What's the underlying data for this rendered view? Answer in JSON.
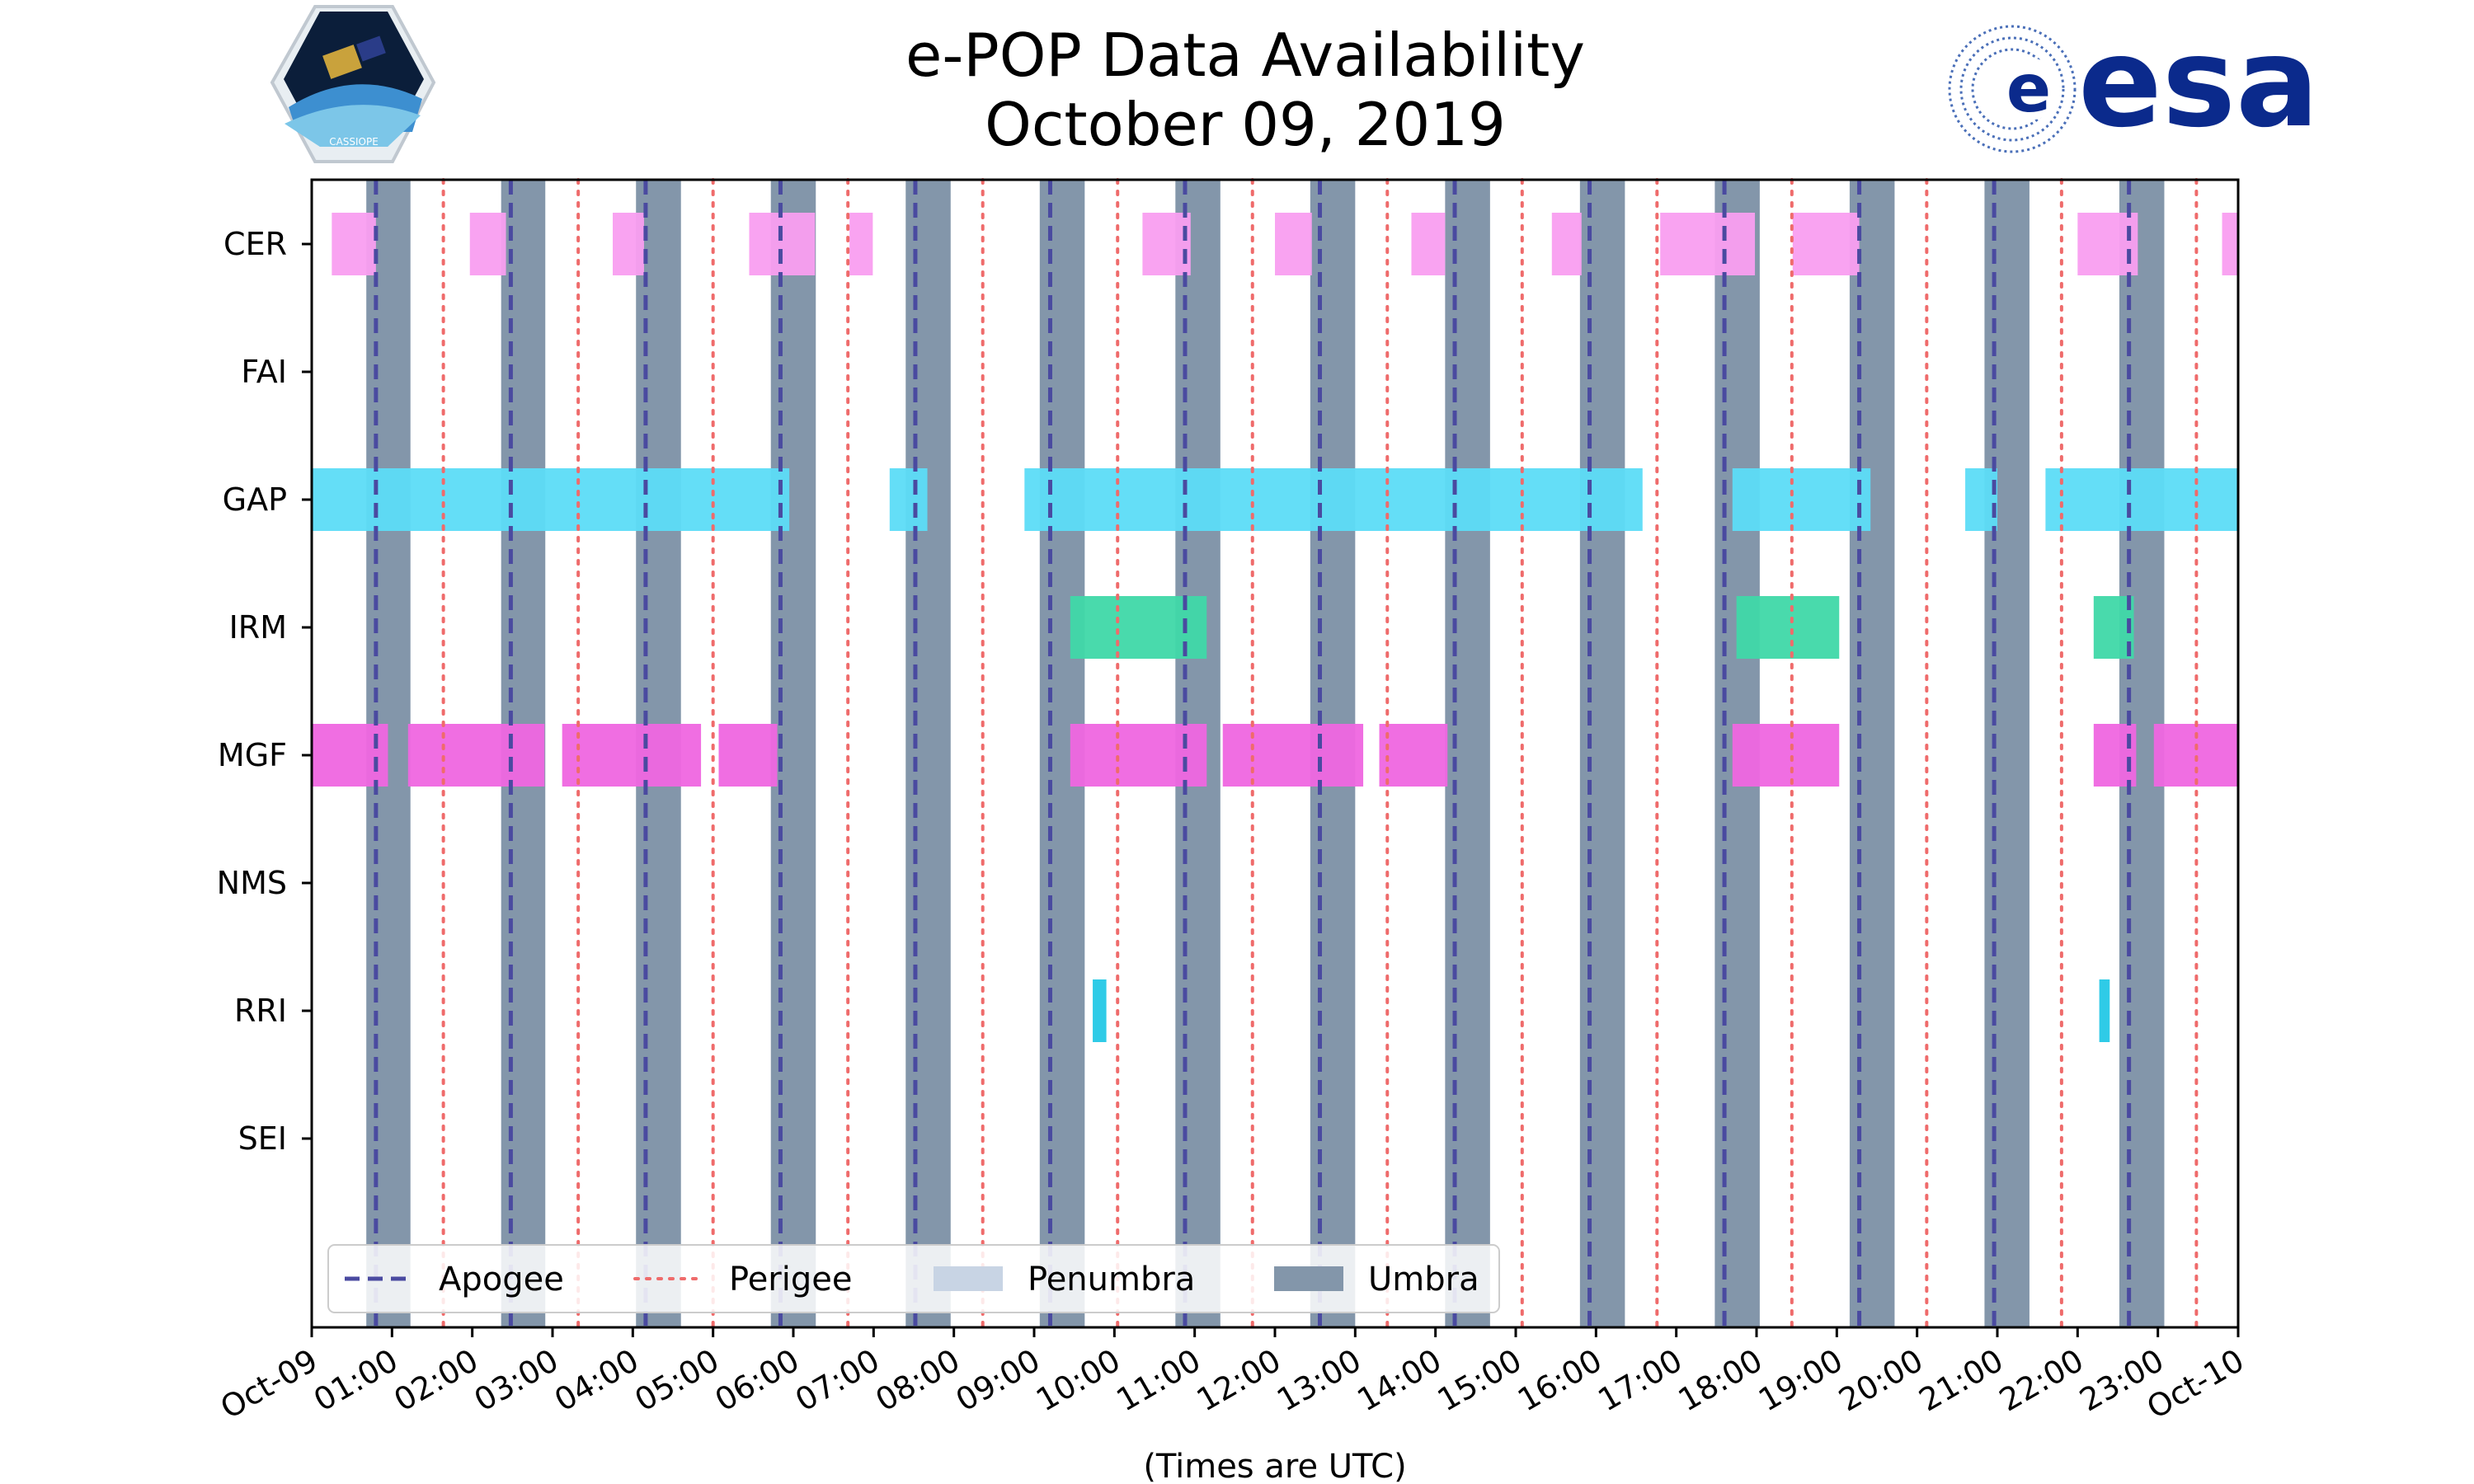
{
  "title": "e-POP Data Availability",
  "subtitle": "October 09, 2019",
  "xlabel": "(Times are UTC)",
  "logos": {
    "left_text": "CASSIOPE",
    "right_text": "esa"
  },
  "colors": {
    "CER": "#f99ef0",
    "GAP": "#5cdcf7",
    "IRM": "#3fd8a8",
    "MGF": "#ef66e0",
    "RRI": "#24c8e6",
    "umbra": "#8396aa",
    "penumbra": "#c8d4e4",
    "apogee": "#4a4aa0",
    "perigee": "#ef6b6b"
  },
  "chart_data": {
    "type": "timeline",
    "x_range_hours": [
      0,
      24
    ],
    "x_ticks": [
      {
        "h": 0,
        "label": "Oct-09"
      },
      {
        "h": 1,
        "label": "01:00"
      },
      {
        "h": 2,
        "label": "02:00"
      },
      {
        "h": 3,
        "label": "03:00"
      },
      {
        "h": 4,
        "label": "04:00"
      },
      {
        "h": 5,
        "label": "05:00"
      },
      {
        "h": 6,
        "label": "06:00"
      },
      {
        "h": 7,
        "label": "07:00"
      },
      {
        "h": 8,
        "label": "08:00"
      },
      {
        "h": 9,
        "label": "09:00"
      },
      {
        "h": 10,
        "label": "10:00"
      },
      {
        "h": 11,
        "label": "11:00"
      },
      {
        "h": 12,
        "label": "12:00"
      },
      {
        "h": 13,
        "label": "13:00"
      },
      {
        "h": 14,
        "label": "14:00"
      },
      {
        "h": 15,
        "label": "15:00"
      },
      {
        "h": 16,
        "label": "16:00"
      },
      {
        "h": 17,
        "label": "17:00"
      },
      {
        "h": 18,
        "label": "18:00"
      },
      {
        "h": 19,
        "label": "19:00"
      },
      {
        "h": 20,
        "label": "20:00"
      },
      {
        "h": 21,
        "label": "21:00"
      },
      {
        "h": 22,
        "label": "22:00"
      },
      {
        "h": 23,
        "label": "23:00"
      },
      {
        "h": 24,
        "label": "Oct-10"
      }
    ],
    "instruments": [
      "CER",
      "FAI",
      "GAP",
      "IRM",
      "MGF",
      "NMS",
      "RRI",
      "SEI"
    ],
    "availability": {
      "CER": [
        [
          0.25,
          0.8
        ],
        [
          1.97,
          2.42
        ],
        [
          3.75,
          4.14
        ],
        [
          5.45,
          6.27
        ],
        [
          6.7,
          6.99
        ],
        [
          10.35,
          10.95
        ],
        [
          12.0,
          12.46
        ],
        [
          13.7,
          14.12
        ],
        [
          15.45,
          15.82
        ],
        [
          16.8,
          17.98
        ],
        [
          18.45,
          19.28
        ],
        [
          22.0,
          22.75
        ],
        [
          23.8,
          24.0
        ]
      ],
      "FAI": [],
      "GAP": [
        [
          0.0,
          5.95
        ],
        [
          7.2,
          7.67
        ],
        [
          8.88,
          16.58
        ],
        [
          17.7,
          19.42
        ],
        [
          20.6,
          21.0
        ],
        [
          21.6,
          24.0
        ]
      ],
      "IRM": [
        [
          9.45,
          11.15
        ],
        [
          17.75,
          19.03
        ],
        [
          22.2,
          22.7
        ]
      ],
      "MGF": [
        [
          0.0,
          0.95
        ],
        [
          1.2,
          2.9
        ],
        [
          3.12,
          4.85
        ],
        [
          5.07,
          5.8
        ],
        [
          9.45,
          11.15
        ],
        [
          11.35,
          13.1
        ],
        [
          13.3,
          14.15
        ],
        [
          17.7,
          19.03
        ],
        [
          22.2,
          22.73
        ],
        [
          22.95,
          24.0
        ]
      ],
      "NMS": [],
      "RRI": [
        [
          9.73,
          9.9
        ],
        [
          22.27,
          22.4
        ]
      ],
      "SEI": []
    },
    "umbra": [
      [
        0.68,
        1.23
      ],
      [
        2.36,
        2.91
      ],
      [
        4.04,
        4.6
      ],
      [
        5.72,
        6.28
      ],
      [
        7.4,
        7.96
      ],
      [
        9.07,
        9.63
      ],
      [
        10.76,
        11.32
      ],
      [
        12.44,
        13.0
      ],
      [
        14.12,
        14.68
      ],
      [
        15.8,
        16.36
      ],
      [
        17.48,
        18.04
      ],
      [
        19.16,
        19.72
      ],
      [
        20.84,
        21.4
      ],
      [
        22.52,
        23.08
      ]
    ],
    "penumbra": [],
    "apogee": [
      0.8,
      2.48,
      4.16,
      5.84,
      7.52,
      9.2,
      10.88,
      12.56,
      14.24,
      15.92,
      17.6,
      19.28,
      20.96,
      22.64
    ],
    "perigee": [
      1.64,
      3.32,
      5.0,
      6.68,
      8.36,
      10.04,
      11.72,
      13.4,
      15.08,
      16.76,
      18.44,
      20.12,
      21.8,
      23.48
    ],
    "legend": {
      "position": "lower-left",
      "items": [
        {
          "label": "Apogee",
          "kind": "apogee"
        },
        {
          "label": "Perigee",
          "kind": "perigee"
        },
        {
          "label": "Penumbra",
          "kind": "penumbra"
        },
        {
          "label": "Umbra",
          "kind": "umbra"
        }
      ]
    }
  }
}
